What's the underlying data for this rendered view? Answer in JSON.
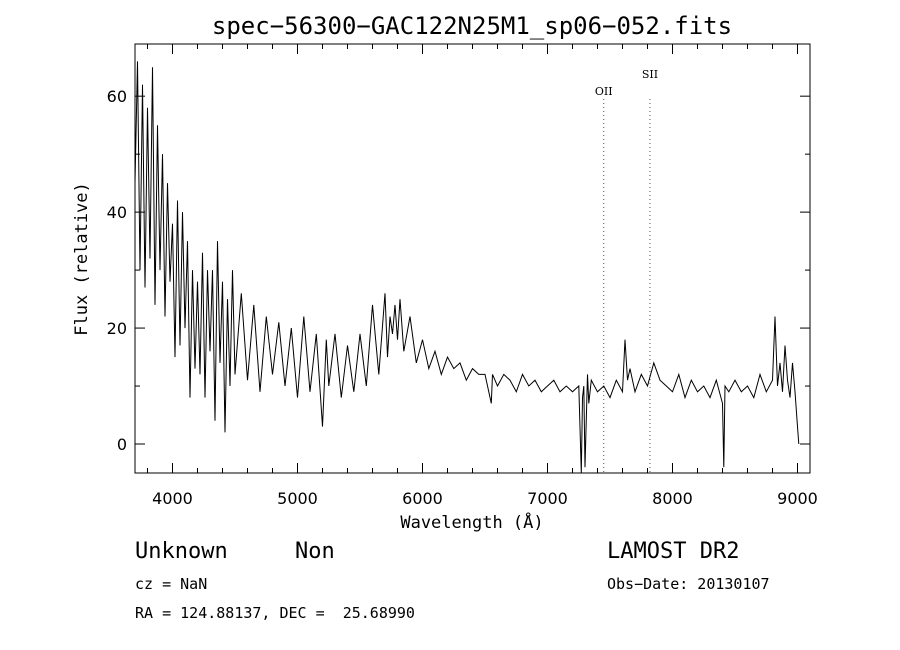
{
  "chart_data": {
    "type": "line",
    "title": "spec−56300−GAC122N25M1_sp06−052.fits",
    "xlabel": "Wavelength (Å)",
    "ylabel": "Flux (relative)",
    "xlim": [
      3700,
      9100
    ],
    "ylim": [
      -5,
      69
    ],
    "xticks": [
      4000,
      5000,
      6000,
      7000,
      8000,
      9000
    ],
    "yticks": [
      0,
      20,
      40,
      60
    ],
    "grid": false,
    "series": [
      {
        "x": [
          3700,
          3720,
          3740,
          3760,
          3780,
          3800,
          3820,
          3840,
          3860,
          3880,
          3900,
          3920,
          3940,
          3960,
          3980,
          4000,
          4020,
          4040,
          4060,
          4080,
          4100,
          4120,
          4140,
          4160,
          4180,
          4200,
          4220,
          4240,
          4260,
          4280,
          4300,
          4320,
          4340,
          4360,
          4380,
          4400,
          4420,
          4440,
          4460,
          4480,
          4500,
          4550,
          4600,
          4650,
          4700,
          4750,
          4800,
          4850,
          4900,
          4950,
          5000,
          5050,
          5100,
          5150,
          5200,
          5230,
          5250,
          5300,
          5350,
          5400,
          5450,
          5500,
          5550,
          5600,
          5650,
          5700,
          5720,
          5740,
          5760,
          5780,
          5800,
          5820,
          5850,
          5900,
          5950,
          6000,
          6050,
          6100,
          6150,
          6200,
          6250,
          6300,
          6350,
          6400,
          6450,
          6500,
          6550,
          6560,
          6580,
          6600,
          6650,
          6700,
          6750,
          6800,
          6850,
          6900,
          6950,
          7000,
          7050,
          7100,
          7150,
          7200,
          7250,
          7270,
          7280,
          7290,
          7300,
          7320,
          7330,
          7350,
          7400,
          7450,
          7500,
          7550,
          7600,
          7620,
          7640,
          7660,
          7700,
          7750,
          7800,
          7850,
          7900,
          7950,
          8000,
          8050,
          8100,
          8150,
          8200,
          8250,
          8300,
          8350,
          8400,
          8410,
          8420,
          8450,
          8500,
          8550,
          8600,
          8650,
          8700,
          8750,
          8800,
          8820,
          8840,
          8860,
          8880,
          8900,
          8920,
          8940,
          8960,
          8980,
          9000,
          9010
        ],
        "y": [
          45,
          66,
          30,
          62,
          27,
          58,
          32,
          65,
          24,
          55,
          30,
          50,
          22,
          45,
          28,
          38,
          15,
          42,
          17,
          40,
          20,
          35,
          8,
          30,
          13,
          28,
          12,
          33,
          8,
          30,
          16,
          30,
          4,
          35,
          14,
          28,
          2,
          25,
          10,
          30,
          12,
          26,
          11,
          24,
          9,
          22,
          12,
          21,
          10,
          20,
          8,
          22,
          9,
          19,
          3,
          18,
          10,
          19,
          8,
          17,
          9,
          19,
          10,
          24,
          12,
          26,
          15,
          22,
          19,
          24,
          18,
          25,
          16,
          22,
          14,
          18,
          13,
          16,
          12,
          15,
          13,
          14,
          11,
          13,
          12,
          12,
          7,
          12,
          11,
          10,
          12,
          11,
          9,
          12,
          10,
          11,
          9,
          10,
          11,
          9,
          10,
          9,
          10,
          -5,
          8,
          10,
          -4,
          12,
          7,
          11,
          9,
          10,
          8,
          11,
          9,
          18,
          11,
          13,
          9,
          12,
          10,
          14,
          11,
          10,
          9,
          12,
          8,
          11,
          9,
          10,
          8,
          11,
          7,
          -4,
          10,
          9,
          11,
          9,
          10,
          8,
          12,
          9,
          11,
          22,
          10,
          14,
          9,
          17,
          11,
          8,
          14,
          9,
          3,
          0
        ]
      }
    ],
    "annotations": [
      {
        "label": "OII",
        "x": 7450
      },
      {
        "label": "SII",
        "x": 7820
      }
    ]
  },
  "info": {
    "object_class": "Unknown",
    "object_subclass": "Non",
    "cz": "cz = NaN",
    "coords": "RA = 124.88137, DEC =  25.68990",
    "survey": "LAMOST DR2",
    "obs_date": "Obs−Date: 20130107"
  }
}
